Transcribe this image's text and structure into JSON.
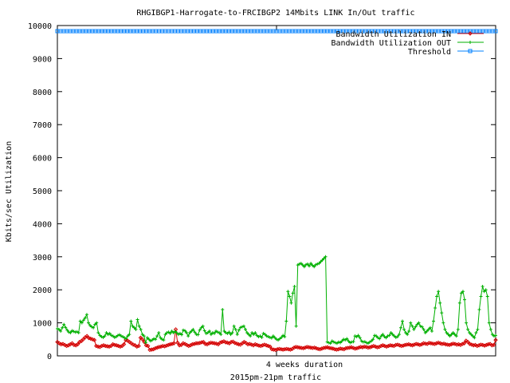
{
  "chart_data": {
    "type": "line",
    "title": "RHGIBGP1-Harrogate-to-FRCIBGP2 14Mbits LINK In/Out traffic",
    "ylabel": "Kbits/sec Utilization",
    "xlabel": "2015pm-21pm traffic",
    "x_tick_label": "4 weeks duration",
    "ylim": [
      0,
      10000
    ],
    "yticks": [
      0,
      1000,
      2000,
      3000,
      4000,
      5000,
      6000,
      7000,
      8000,
      9000,
      10000
    ],
    "grid": false,
    "legend_position": "top-right",
    "series": [
      {
        "name": "Bandwidth Utilization IN",
        "color": "#d40000",
        "marker": "diamond",
        "values": [
          420,
          380,
          350,
          360,
          330,
          300,
          320,
          350,
          380,
          330,
          320,
          350,
          420,
          450,
          500,
          560,
          600,
          540,
          520,
          500,
          480,
          300,
          280,
          270,
          300,
          320,
          300,
          290,
          280,
          300,
          350,
          330,
          320,
          300,
          280,
          300,
          350,
          480,
          460,
          420,
          380,
          340,
          320,
          280,
          300,
          550,
          500,
          420,
          320,
          300,
          180,
          190,
          200,
          230,
          250,
          270,
          280,
          300,
          290,
          310,
          330,
          350,
          360,
          380,
          800,
          400,
          320,
          330,
          380,
          360,
          330,
          300,
          320,
          350,
          360,
          380,
          380,
          390,
          410,
          420,
          360,
          350,
          380,
          400,
          390,
          380,
          370,
          350,
          400,
          420,
          440,
          410,
          400,
          380,
          420,
          430,
          390,
          370,
          350,
          340,
          380,
          420,
          390,
          350,
          360,
          340,
          320,
          350,
          330,
          310,
          300,
          320,
          340,
          320,
          300,
          280,
          200,
          190,
          180,
          200,
          210,
          200,
          190,
          200,
          210,
          200,
          190,
          210,
          250,
          270,
          260,
          250,
          240,
          230,
          250,
          270,
          260,
          250,
          240,
          250,
          230,
          210,
          200,
          220,
          240,
          250,
          260,
          240,
          230,
          220,
          200,
          190,
          200,
          220,
          210,
          200,
          230,
          240,
          250,
          260,
          240,
          220,
          230,
          250,
          270,
          260,
          280,
          270,
          250,
          260,
          280,
          300,
          280,
          260,
          270,
          300,
          320,
          300,
          280,
          300,
          320,
          310,
          300,
          330,
          340,
          320,
          300,
          310,
          330,
          340,
          350,
          330,
          320,
          340,
          360,
          350,
          330,
          350,
          380,
          370,
          360,
          390,
          380,
          370,
          360,
          380,
          400,
          380,
          360,
          370,
          350,
          340,
          330,
          350,
          370,
          360,
          340,
          350,
          330,
          360,
          380,
          460,
          420,
          360,
          340,
          320,
          330,
          300,
          320,
          340,
          330,
          310,
          330,
          350,
          360,
          320,
          330,
          480
        ]
      },
      {
        "name": "Bandwidth Utilization OUT",
        "color": "#00b000",
        "marker": "plus",
        "values": [
          820,
          800,
          750,
          850,
          950,
          860,
          780,
          720,
          700,
          760,
          740,
          720,
          730,
          700,
          1050,
          1000,
          1080,
          1150,
          1250,
          1000,
          920,
          880,
          850,
          950,
          1000,
          700,
          620,
          580,
          560,
          600,
          700,
          650,
          680,
          620,
          600,
          560,
          580,
          620,
          640,
          600,
          580,
          550,
          520,
          600,
          650,
          1050,
          900,
          850,
          800,
          1100,
          900,
          800,
          650,
          600,
          400,
          550,
          500,
          450,
          480,
          520,
          500,
          600,
          700,
          550,
          500,
          480,
          650,
          700,
          720,
          680,
          750,
          700,
          740,
          700,
          650,
          680,
          640,
          780,
          760,
          700,
          600,
          700,
          750,
          800,
          720,
          650,
          640,
          780,
          850,
          900,
          760,
          680,
          700,
          750,
          650,
          700,
          680,
          750,
          720,
          700,
          650,
          1400,
          750,
          700,
          680,
          720,
          650,
          700,
          900,
          800,
          650,
          780,
          860,
          880,
          900,
          800,
          700,
          650,
          600,
          700,
          650,
          700,
          620,
          580,
          600,
          560,
          680,
          650,
          600,
          580,
          560,
          540,
          600,
          550,
          500,
          480,
          520,
          560,
          620,
          580,
          1050,
          1950,
          1800,
          1600,
          1900,
          2100,
          900,
          2750,
          2780,
          2800,
          2750,
          2700,
          2760,
          2780,
          2720,
          2800,
          2740,
          2700,
          2760,
          2780,
          2800,
          2850,
          2900,
          2950,
          3000,
          420,
          400,
          380,
          450,
          420,
          400,
          380,
          420,
          400,
          450,
          500,
          480,
          520,
          450,
          400,
          420,
          430,
          600,
          580,
          620,
          550,
          450,
          420,
          430,
          400,
          380,
          420,
          450,
          500,
          620,
          600,
          550,
          520,
          600,
          650,
          580,
          550,
          600,
          620,
          700,
          650,
          600,
          560,
          580,
          650,
          850,
          1050,
          800,
          700,
          650,
          750,
          1000,
          900,
          800,
          880,
          950,
          1000,
          900,
          880,
          800,
          700,
          750,
          800,
          850,
          750,
          1050,
          1450,
          1800,
          1950,
          1600,
          1300,
          1000,
          800,
          700,
          650,
          600,
          650,
          700,
          650,
          600,
          800,
          1600,
          1900,
          1950,
          1700,
          1000,
          800,
          700,
          650,
          600,
          550,
          700,
          800,
          1400,
          1800,
          2100,
          1950,
          2000,
          1800,
          1000,
          800,
          650,
          600,
          620
        ]
      },
      {
        "name": "Threshold",
        "color": "#0080ff",
        "marker": "square",
        "values": [
          9830,
          9830
        ]
      }
    ]
  }
}
